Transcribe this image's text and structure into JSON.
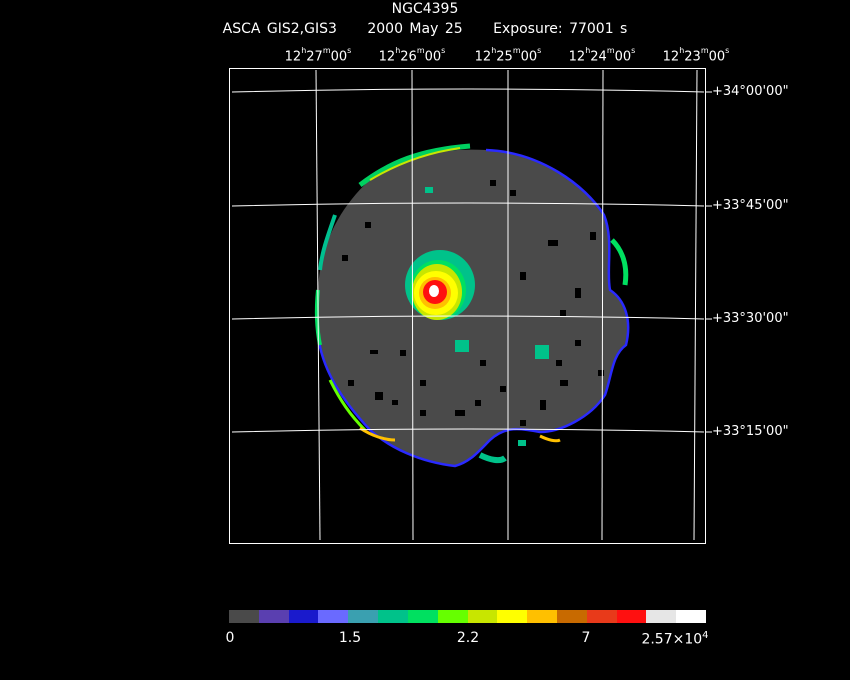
{
  "header": {
    "object": "NGC4395",
    "instrument": "ASCA GIS2,GIS3",
    "date": "2000 May 25",
    "exposure": "Exposure: 77001 s"
  },
  "ra_ticks": [
    {
      "h": "12",
      "m": "27",
      "s": "00"
    },
    {
      "h": "12",
      "m": "26",
      "s": "00"
    },
    {
      "h": "12",
      "m": "25",
      "s": "00"
    },
    {
      "h": "12",
      "m": "24",
      "s": "00"
    },
    {
      "h": "12",
      "m": "23",
      "s": "00"
    }
  ],
  "dec_ticks": [
    "+34°00'00\"",
    "+33°45'00\"",
    "+33°30'00\"",
    "+33°15'00\""
  ],
  "colorbar": {
    "colors": [
      "#4a4a4a",
      "#5a3fb0",
      "#1a1acc",
      "#6a6aff",
      "#3aa0b0",
      "#00c28a",
      "#00e060",
      "#66ff00",
      "#c8e600",
      "#ffff00",
      "#ffc000",
      "#c86a00",
      "#e83a1a",
      "#ff1010",
      "#e6e6e6",
      "#ffffff"
    ],
    "labels": [
      "0",
      "1.5",
      "2.2",
      "7"
    ],
    "max_label_base": "2.57×10",
    "max_label_exp": "4"
  }
}
